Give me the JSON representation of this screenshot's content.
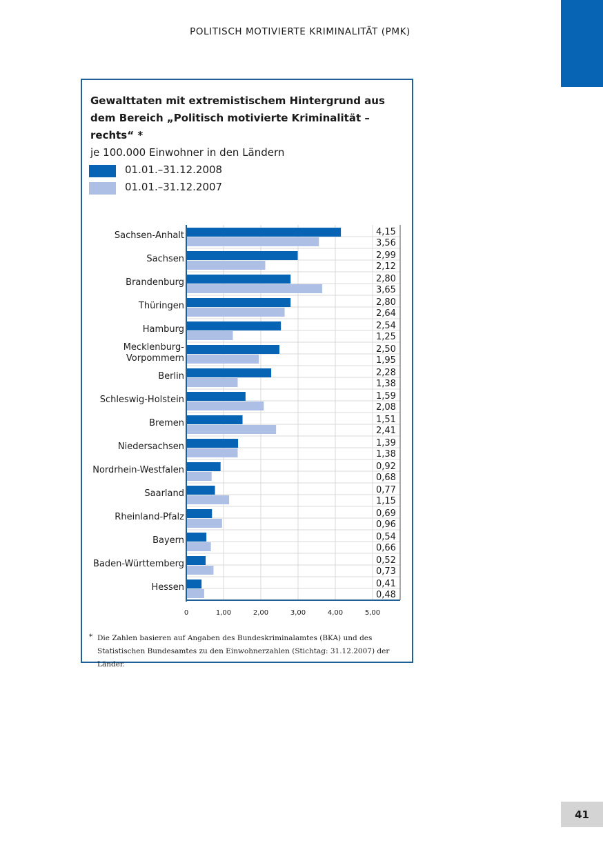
{
  "page": {
    "header": "POLITISCH MOTIVIERTE KRIMINALITÄT (PMK)",
    "page_number": "41"
  },
  "colors": {
    "accent": "#0763b4",
    "series_2008": "#0763b4",
    "series_2007": "#aebfe6",
    "grid": "#d8d8d8",
    "box_border": "#1f5f98"
  },
  "chart_data": {
    "type": "bar",
    "orientation": "horizontal",
    "title": "Gewalttaten mit extremistischem Hintergrund aus dem Bereich „Politisch motivierte Kriminalität – rechts“ *",
    "subtitle": "je 100.000 Einwohner in den Ländern",
    "legend": [
      "01.01.–31.12.2008",
      "01.01.–31.12.2007"
    ],
    "categories": [
      "Sachsen-Anhalt",
      "Sachsen",
      "Brandenburg",
      "Thüringen",
      "Hamburg",
      "Mecklenburg-\nVorpommern",
      "Berlin",
      "Schleswig-Holstein",
      "Bremen",
      "Niedersachsen",
      "Nordrhein-Westfalen",
      "Saarland",
      "Rheinland-Pfalz",
      "Bayern",
      "Baden-Württemberg",
      "Hessen"
    ],
    "series": [
      {
        "name": "01.01.–31.12.2008",
        "values": [
          4.15,
          2.99,
          2.8,
          2.8,
          2.54,
          2.5,
          2.28,
          1.59,
          1.51,
          1.39,
          0.92,
          0.77,
          0.69,
          0.54,
          0.52,
          0.41
        ],
        "labels": [
          "4,15",
          "2,99",
          "2,80",
          "2,80",
          "2,54",
          "2,50",
          "2,28",
          "1,59",
          "1,51",
          "1,39",
          "0,92",
          "0,77",
          "0,69",
          "0,54",
          "0,52",
          "0,41"
        ]
      },
      {
        "name": "01.01.–31.12.2007",
        "values": [
          3.56,
          2.12,
          3.65,
          2.64,
          1.25,
          1.95,
          1.38,
          2.08,
          2.41,
          1.38,
          0.68,
          1.15,
          0.96,
          0.66,
          0.73,
          0.48
        ],
        "labels": [
          "3,56",
          "2,12",
          "3,65",
          "2,64",
          "1,25",
          "1,95",
          "1,38",
          "2,08",
          "2,41",
          "1,38",
          "0,68",
          "1,15",
          "0,96",
          "0,66",
          "0,73",
          "0,48"
        ]
      }
    ],
    "x_ticks": [
      0,
      1,
      2,
      3,
      4,
      5
    ],
    "x_tick_labels": [
      "0",
      "1,00",
      "2,00",
      "3,00",
      "4,00",
      "5,00"
    ],
    "xlim": [
      0,
      5
    ],
    "grid": true
  },
  "footnote": {
    "marker": "*",
    "text": "Die Zahlen basieren auf Angaben des Bundeskriminalamtes (BKA) und des Statistischen Bundesamtes zu den Einwohnerzahlen (Stichtag: 31.12.2007) der Länder."
  }
}
